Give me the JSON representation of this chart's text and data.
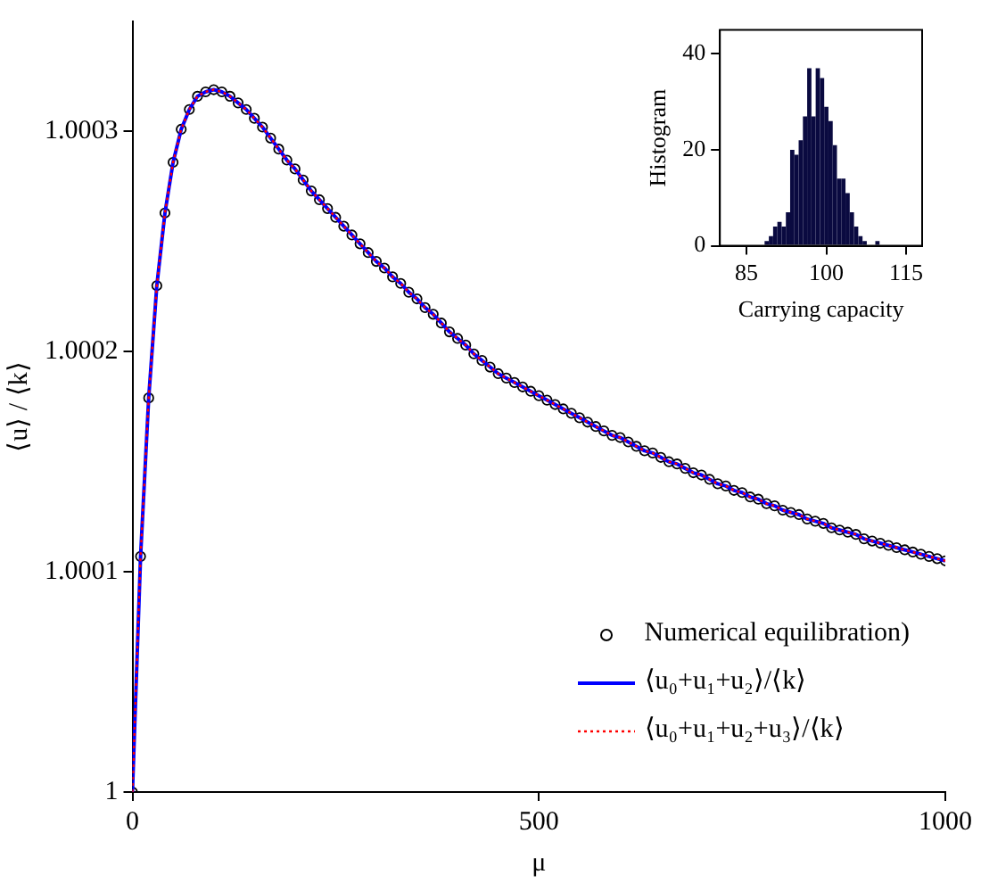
{
  "chart_data": [
    {
      "type": "line",
      "xlabel": "μ",
      "ylabel": "⟨u⟩ / ⟨k⟩",
      "x": [
        0,
        10,
        20,
        30,
        40,
        50,
        60,
        70,
        80,
        90,
        100,
        110,
        120,
        130,
        140,
        150,
        160,
        170,
        180,
        190,
        200,
        210,
        220,
        230,
        240,
        250,
        260,
        270,
        280,
        290,
        300,
        310,
        320,
        330,
        340,
        350,
        360,
        370,
        380,
        390,
        400,
        410,
        420,
        430,
        440,
        450,
        460,
        470,
        480,
        490,
        500,
        510,
        520,
        530,
        540,
        550,
        560,
        570,
        580,
        590,
        600,
        610,
        620,
        630,
        640,
        650,
        660,
        670,
        680,
        690,
        700,
        710,
        720,
        730,
        740,
        750,
        760,
        770,
        780,
        790,
        800,
        810,
        820,
        830,
        840,
        850,
        860,
        870,
        880,
        890,
        900,
        910,
        920,
        930,
        940,
        950,
        960,
        970,
        980,
        990,
        1000
      ],
      "series": [
        {
          "name": "Numerical equilibration)",
          "type": "scatter",
          "marker": "circle",
          "color": "#000000",
          "values": [
            1,
            1.000107,
            1.000179,
            1.00023,
            1.000263,
            1.000286,
            1.000301,
            1.00031,
            1.000316,
            1.000318,
            1.000319,
            1.000318,
            1.000316,
            1.000313,
            1.00031,
            1.000306,
            1.000302,
            1.000297,
            1.000292,
            1.000287,
            1.000283,
            1.000278,
            1.000273,
            1.000269,
            1.000265,
            1.000261,
            1.000257,
            1.000253,
            1.000249,
            1.000245,
            1.000241,
            1.000238,
            1.000234,
            1.000231,
            1.000227,
            1.000224,
            1.00022,
            1.000217,
            1.000213,
            1.000209,
            1.000206,
            1.000203,
            1.000199,
            1.000196,
            1.000193,
            1.00019,
            1.000188,
            1.000186,
            1.000184,
            1.000182,
            1.00018,
            1.000178,
            1.000176,
            1.000174,
            1.000172,
            1.00017,
            1.000168,
            1.000166,
            1.000164,
            1.000162,
            1.000161,
            1.000159,
            1.000157,
            1.000155,
            1.000154,
            1.000152,
            1.00015,
            1.000149,
            1.000147,
            1.000145,
            1.000144,
            1.000142,
            1.00014,
            1.000139,
            1.000137,
            1.000136,
            1.000134,
            1.000133,
            1.000131,
            1.00013,
            1.000128,
            1.000127,
            1.000126,
            1.000124,
            1.000123,
            1.000122,
            1.00012,
            1.000119,
            1.000118,
            1.000117,
            1.000115,
            1.000114,
            1.000113,
            1.000112,
            1.000111,
            1.00011,
            1.000109,
            1.000108,
            1.000107,
            1.000106,
            1.000105
          ]
        },
        {
          "name": "⟨u₀+u₁+u₂⟩/⟨k⟩",
          "type": "line",
          "line_style": "solid",
          "color": "#0000ff",
          "values": [
            1,
            1.000107,
            1.000179,
            1.00023,
            1.000263,
            1.000286,
            1.000301,
            1.00031,
            1.000316,
            1.000318,
            1.000319,
            1.000318,
            1.000316,
            1.000313,
            1.00031,
            1.000306,
            1.000302,
            1.000297,
            1.000292,
            1.000287,
            1.000283,
            1.000278,
            1.000273,
            1.000269,
            1.000265,
            1.000261,
            1.000257,
            1.000253,
            1.000249,
            1.000245,
            1.000241,
            1.000238,
            1.000234,
            1.000231,
            1.000227,
            1.000224,
            1.00022,
            1.000217,
            1.000213,
            1.000209,
            1.000206,
            1.000203,
            1.000199,
            1.000196,
            1.000193,
            1.00019,
            1.000188,
            1.000186,
            1.000184,
            1.000182,
            1.00018,
            1.000178,
            1.000176,
            1.000174,
            1.000172,
            1.00017,
            1.000168,
            1.000166,
            1.000164,
            1.000162,
            1.000161,
            1.000159,
            1.000157,
            1.000155,
            1.000154,
            1.000152,
            1.00015,
            1.000149,
            1.000147,
            1.000145,
            1.000144,
            1.000142,
            1.00014,
            1.000139,
            1.000137,
            1.000136,
            1.000134,
            1.000133,
            1.000131,
            1.00013,
            1.000128,
            1.000127,
            1.000126,
            1.000124,
            1.000123,
            1.000122,
            1.00012,
            1.000119,
            1.000118,
            1.000117,
            1.000115,
            1.000114,
            1.000113,
            1.000112,
            1.000111,
            1.00011,
            1.000109,
            1.000108,
            1.000107,
            1.000106,
            1.000105
          ]
        },
        {
          "name": "⟨u₀+u₁+u₂+u₃⟩/⟨k⟩",
          "type": "line",
          "line_style": "dotted",
          "color": "#ff0000",
          "values": [
            1,
            1.000107,
            1.000179,
            1.00023,
            1.000263,
            1.000286,
            1.000301,
            1.00031,
            1.000316,
            1.000318,
            1.000319,
            1.000318,
            1.000316,
            1.000313,
            1.00031,
            1.000306,
            1.000302,
            1.000297,
            1.000292,
            1.000287,
            1.000283,
            1.000278,
            1.000273,
            1.000269,
            1.000265,
            1.000261,
            1.000257,
            1.000253,
            1.000249,
            1.000245,
            1.000241,
            1.000238,
            1.000234,
            1.000231,
            1.000227,
            1.000224,
            1.00022,
            1.000217,
            1.000213,
            1.000209,
            1.000206,
            1.000203,
            1.000199,
            1.000196,
            1.000193,
            1.00019,
            1.000188,
            1.000186,
            1.000184,
            1.000182,
            1.00018,
            1.000178,
            1.000176,
            1.000174,
            1.000172,
            1.00017,
            1.000168,
            1.000166,
            1.000164,
            1.000162,
            1.000161,
            1.000159,
            1.000157,
            1.000155,
            1.000154,
            1.000152,
            1.00015,
            1.000149,
            1.000147,
            1.000145,
            1.000144,
            1.000142,
            1.00014,
            1.000139,
            1.000137,
            1.000136,
            1.000134,
            1.000133,
            1.000131,
            1.00013,
            1.000128,
            1.000127,
            1.000126,
            1.000124,
            1.000123,
            1.000122,
            1.00012,
            1.000119,
            1.000118,
            1.000117,
            1.000115,
            1.000114,
            1.000113,
            1.000112,
            1.000111,
            1.00011,
            1.000109,
            1.000108,
            1.000107,
            1.000106,
            1.000105
          ]
        }
      ],
      "xlim": [
        0,
        1000
      ],
      "xticks": [
        0,
        500,
        1000
      ],
      "ylim": [
        1,
        1.00035
      ],
      "yticks": [
        1,
        1.0001,
        1.0002,
        1.0003
      ],
      "legend": "bottom right"
    },
    {
      "type": "histogram",
      "xlabel": "Carrying capacity",
      "ylabel": "Histogram",
      "color": "#0a0a40",
      "bins": [
        88.4,
        89.2,
        90.0,
        90.8,
        91.6,
        92.4,
        93.2,
        94.0,
        94.8,
        95.6,
        96.4,
        97.2,
        98.0,
        98.8,
        99.6,
        100.4,
        101.2,
        102.0,
        102.8,
        103.6,
        104.4,
        105.2,
        106.0,
        106.8,
        107.6,
        108.4,
        109.2,
        110.0
      ],
      "values": [
        1,
        2,
        4,
        5,
        4,
        7,
        20,
        19,
        22,
        27,
        37,
        27,
        37,
        35,
        29,
        26,
        21,
        14,
        14,
        11,
        7,
        4,
        2,
        1,
        null,
        null,
        1
      ],
      "xlim": [
        80,
        118
      ],
      "xticks": [
        85,
        100,
        115
      ],
      "ylim": [
        0,
        45
      ],
      "yticks": [
        0,
        20,
        40
      ]
    }
  ]
}
